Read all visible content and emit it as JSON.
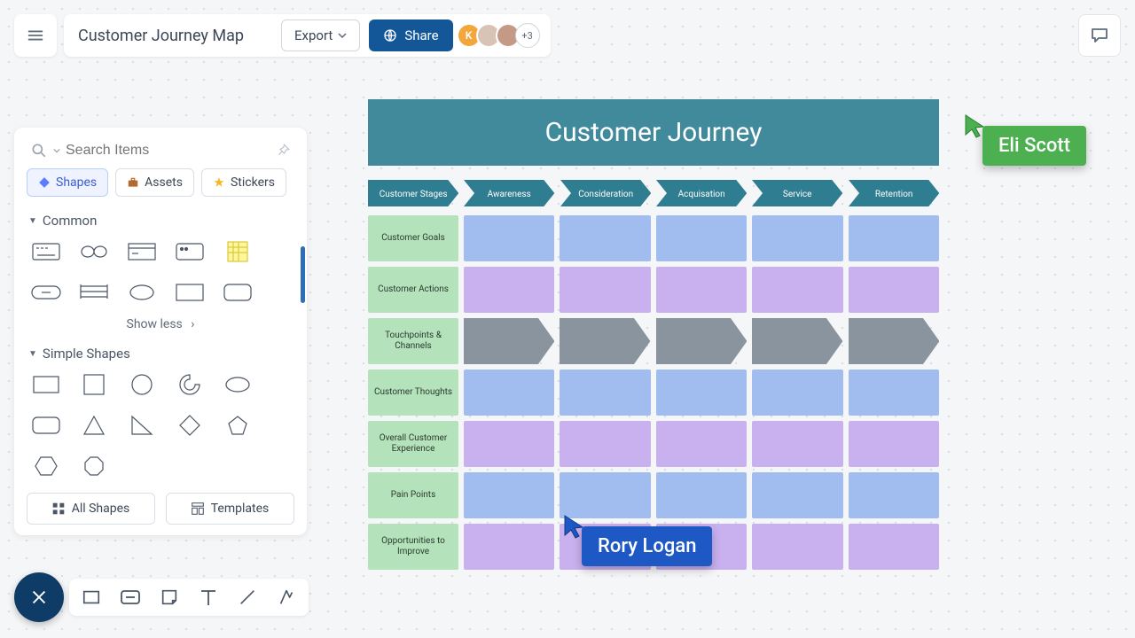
{
  "header": {
    "title": "Customer Journey Map",
    "export_label": "Export",
    "share_label": "Share",
    "more_count": "+3",
    "avatar_colors": [
      "#f2a63c",
      "#e9d9c8",
      "#d8b8a8"
    ]
  },
  "search": {
    "placeholder": "Search Items"
  },
  "tabs": {
    "shapes": "Shapes",
    "assets": "Assets",
    "stickers": "Stickers"
  },
  "sections": {
    "common": "Common",
    "simple": "Simple Shapes",
    "show_less": "Show less"
  },
  "panel_buttons": {
    "all_shapes": "All Shapes",
    "templates": "Templates"
  },
  "diagram": {
    "title": "Customer Journey",
    "stage_header": "Customer Stages",
    "stages": [
      "Awareness",
      "Consideration",
      "Acquisation",
      "Service",
      "Retention"
    ],
    "rows": [
      "Customer Goals",
      "Customer Actions",
      "Touchpoints & Channels",
      "Customer Thoughts",
      "Overall Customer Experience",
      "Pain Points",
      "Opportunities to Improve"
    ],
    "colors": {
      "title_bg": "#408a9b",
      "stage_bg": "#2f7d90",
      "label_bg": "#b4e2bb",
      "blue": "#a1bdf0",
      "purple": "#c9b0ef",
      "grey_arrow": "#8a949e"
    },
    "row_styles": [
      "blue",
      "purple",
      "arrows",
      "blue",
      "purple",
      "blue",
      "purple"
    ]
  },
  "cursors": {
    "eli": {
      "label": "Eli Scott",
      "color": "#4caf50"
    },
    "rory": {
      "label": "Rory Logan",
      "color": "#1d58c4"
    }
  }
}
